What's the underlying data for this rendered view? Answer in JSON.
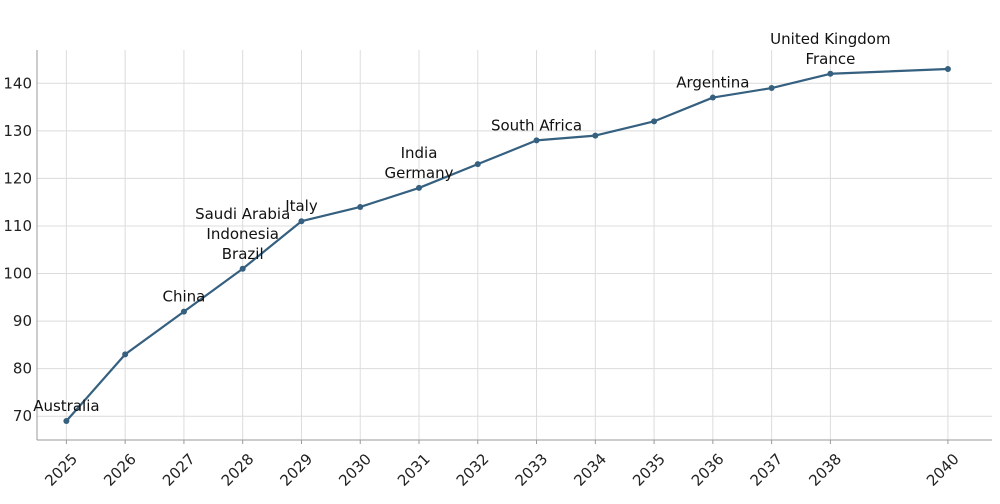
{
  "chart_data": {
    "type": "line",
    "title": "",
    "xlabel": "",
    "ylabel": "",
    "x": [
      2025,
      2026,
      2027,
      2028,
      2029,
      2030,
      2031,
      2032,
      2033,
      2034,
      2035,
      2036,
      2037,
      2038,
      2040
    ],
    "series": [
      {
        "name": "",
        "values": [
          69,
          83,
          92,
          101,
          111,
          114,
          118,
          123,
          128,
          129,
          132,
          137,
          139,
          142,
          143
        ],
        "color": "#35607f"
      }
    ],
    "xlim": [
      2024.5,
      2040.75
    ],
    "ylim": [
      65,
      147
    ],
    "y_ticks": [
      70,
      80,
      90,
      100,
      110,
      120,
      130,
      140
    ],
    "x_ticks": [
      2025,
      2026,
      2027,
      2028,
      2029,
      2030,
      2031,
      2032,
      2033,
      2034,
      2035,
      2036,
      2037,
      2038,
      2040
    ],
    "grid": true,
    "annotations": [
      {
        "text": "Australia",
        "x": 2025,
        "y": 69,
        "stack": 0
      },
      {
        "text": "China",
        "x": 2027,
        "y": 92,
        "stack": 0
      },
      {
        "text": "Brazil",
        "x": 2028,
        "y": 101,
        "stack": 0
      },
      {
        "text": "Indonesia",
        "x": 2028,
        "y": 101,
        "stack": 1
      },
      {
        "text": "Saudi Arabia",
        "x": 2028,
        "y": 101,
        "stack": 2
      },
      {
        "text": "Italy",
        "x": 2029,
        "y": 111,
        "stack": 0
      },
      {
        "text": "Germany",
        "x": 2031,
        "y": 118,
        "stack": 0
      },
      {
        "text": "India",
        "x": 2031,
        "y": 118,
        "stack": 1
      },
      {
        "text": "South Africa",
        "x": 2033,
        "y": 128,
        "stack": 0
      },
      {
        "text": "Argentina",
        "x": 2036,
        "y": 137,
        "stack": 0
      },
      {
        "text": "France",
        "x": 2038,
        "y": 142,
        "stack": 0
      },
      {
        "text": "United Kingdom",
        "x": 2038,
        "y": 142,
        "stack": 1
      }
    ]
  }
}
